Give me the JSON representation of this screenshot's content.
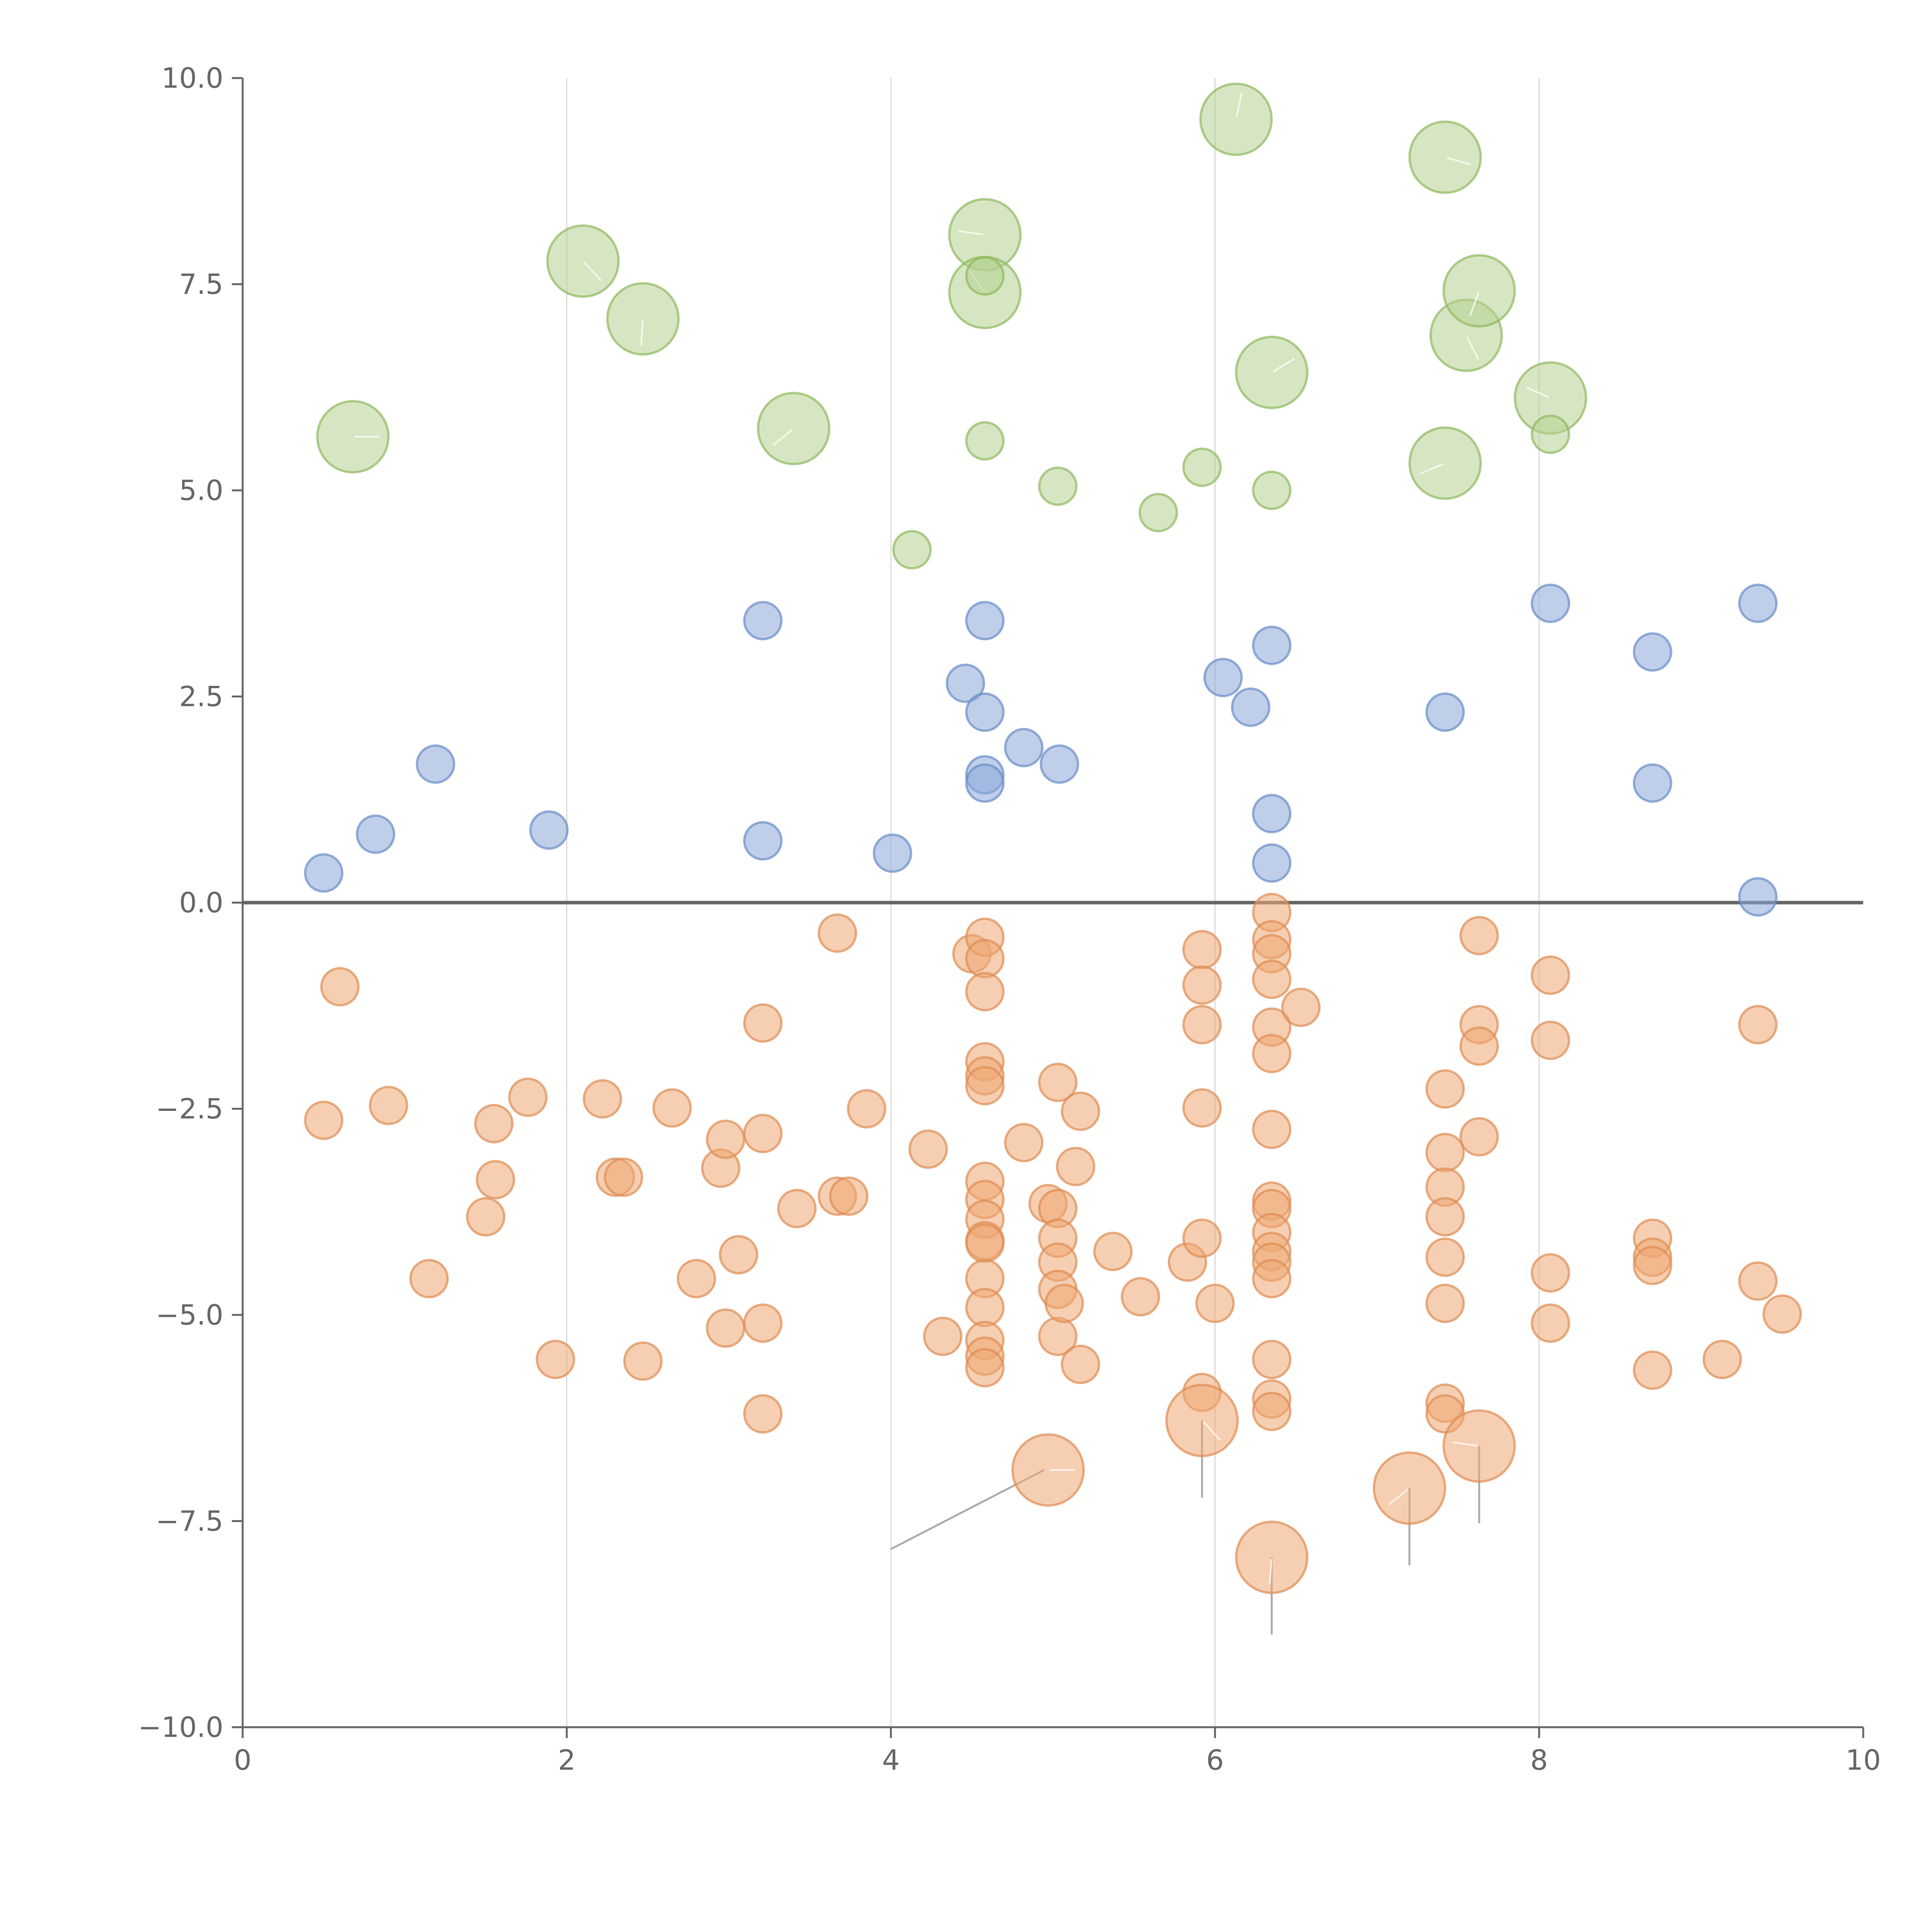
{
  "chart_data": {
    "type": "scatter",
    "title": "",
    "xlabel": "",
    "ylabel": "",
    "xlim": [
      0,
      10
    ],
    "ylim": [
      -10,
      10
    ],
    "x_ticks": [
      0,
      2,
      4,
      6,
      8,
      10
    ],
    "x_tick_labels": [
      "0",
      "2",
      "4",
      "6",
      "8",
      "10"
    ],
    "y_ticks": [
      10,
      7.5,
      5,
      2.5,
      0,
      -2.5,
      -5,
      -7.5,
      -10
    ],
    "y_tick_labels": [
      "10.0",
      "7.5",
      "5.0",
      "2.5",
      "0.0",
      "−2.5",
      "−5.0",
      "−7.5",
      "−10.0"
    ],
    "vertical_grid_at": [
      2,
      4,
      6,
      8
    ],
    "zero_line": 0,
    "colors": {
      "green_fill": "#b5d18f",
      "green_stroke": "#8fb85e",
      "blue_fill": "#8aa8d8",
      "blue_stroke": "#6a8cc6",
      "orange_fill": "#eea872",
      "orange_stroke": "#de8c52"
    },
    "series": [
      {
        "name": "large-green",
        "color": "green",
        "size": "large",
        "points": [
          [
            0.68,
            5.65
          ],
          [
            2.1,
            7.78
          ],
          [
            2.47,
            7.08
          ],
          [
            3.4,
            5.75
          ],
          [
            4.58,
            8.1
          ],
          [
            4.58,
            7.4
          ],
          [
            6.13,
            9.5
          ],
          [
            6.35,
            6.43
          ],
          [
            7.42,
            9.04
          ],
          [
            7.55,
            6.88
          ],
          [
            7.63,
            7.42
          ],
          [
            7.42,
            5.33
          ],
          [
            8.07,
            6.12
          ]
        ]
      },
      {
        "name": "small-green",
        "color": "green",
        "size": "small",
        "points": [
          [
            4.58,
            7.6
          ],
          [
            4.58,
            5.6
          ],
          [
            4.13,
            4.28
          ],
          [
            5.03,
            5.05
          ],
          [
            5.65,
            4.73
          ],
          [
            5.92,
            5.28
          ],
          [
            6.35,
            5.0
          ],
          [
            8.07,
            5.68
          ]
        ]
      },
      {
        "name": "blue",
        "color": "blue",
        "size": "small",
        "points": [
          [
            0.5,
            0.36
          ],
          [
            0.82,
            0.83
          ],
          [
            1.19,
            1.68
          ],
          [
            1.89,
            0.88
          ],
          [
            3.21,
            3.42
          ],
          [
            3.21,
            0.75
          ],
          [
            4.01,
            0.6
          ],
          [
            4.46,
            2.66
          ],
          [
            4.58,
            3.42
          ],
          [
            4.58,
            2.31
          ],
          [
            4.58,
            1.55
          ],
          [
            4.58,
            1.45
          ],
          [
            4.82,
            1.88
          ],
          [
            5.04,
            1.68
          ],
          [
            6.05,
            2.73
          ],
          [
            6.22,
            2.37
          ],
          [
            6.35,
            3.12
          ],
          [
            6.35,
            1.08
          ],
          [
            6.35,
            0.48
          ],
          [
            7.42,
            2.31
          ],
          [
            8.07,
            3.63
          ],
          [
            8.7,
            3.04
          ],
          [
            8.7,
            1.45
          ],
          [
            9.35,
            3.63
          ],
          [
            9.35,
            0.07
          ]
        ]
      },
      {
        "name": "small-orange",
        "color": "orange",
        "size": "small",
        "points": [
          [
            0.5,
            -2.64
          ],
          [
            0.6,
            -1.02
          ],
          [
            0.9,
            -2.46
          ],
          [
            1.15,
            -4.56
          ],
          [
            1.5,
            -3.81
          ],
          [
            1.55,
            -2.68
          ],
          [
            1.56,
            -3.36
          ],
          [
            1.76,
            -2.36
          ],
          [
            1.93,
            -5.54
          ],
          [
            2.22,
            -2.38
          ],
          [
            2.3,
            -3.33
          ],
          [
            2.35,
            -3.33
          ],
          [
            2.47,
            -5.56
          ],
          [
            2.65,
            -2.49
          ],
          [
            2.8,
            -4.56
          ],
          [
            2.95,
            -3.22
          ],
          [
            2.98,
            -2.87
          ],
          [
            2.98,
            -5.16
          ],
          [
            3.06,
            -4.27
          ],
          [
            3.21,
            -1.46
          ],
          [
            3.21,
            -2.8
          ],
          [
            3.21,
            -5.1
          ],
          [
            3.21,
            -6.2
          ],
          [
            3.42,
            -3.71
          ],
          [
            3.67,
            -0.37
          ],
          [
            3.67,
            -3.56
          ],
          [
            3.74,
            -3.56
          ],
          [
            3.85,
            -2.5
          ],
          [
            4.23,
            -2.99
          ],
          [
            4.32,
            -5.26
          ],
          [
            4.5,
            -0.62
          ],
          [
            4.58,
            -0.42
          ],
          [
            4.58,
            -0.68
          ],
          [
            4.58,
            -1.08
          ],
          [
            4.58,
            -1.93
          ],
          [
            4.58,
            -2.1
          ],
          [
            4.58,
            -2.22
          ],
          [
            4.58,
            -3.38
          ],
          [
            4.58,
            -3.6
          ],
          [
            4.58,
            -3.84
          ],
          [
            4.58,
            -4.1
          ],
          [
            4.58,
            -4.13
          ],
          [
            4.58,
            -4.56
          ],
          [
            4.58,
            -4.91
          ],
          [
            4.58,
            -5.31
          ],
          [
            4.58,
            -5.5
          ],
          [
            4.58,
            -5.64
          ],
          [
            4.82,
            -2.91
          ],
          [
            4.97,
            -3.65
          ],
          [
            5.03,
            -2.18
          ],
          [
            5.03,
            -3.71
          ],
          [
            5.03,
            -4.07
          ],
          [
            5.03,
            -4.36
          ],
          [
            5.03,
            -4.69
          ],
          [
            5.03,
            -5.26
          ],
          [
            5.07,
            -4.86
          ],
          [
            5.14,
            -3.2
          ],
          [
            5.17,
            -2.53
          ],
          [
            5.17,
            -5.6
          ],
          [
            5.37,
            -4.23
          ],
          [
            5.54,
            -4.78
          ],
          [
            5.83,
            -4.36
          ],
          [
            5.92,
            -0.57
          ],
          [
            5.92,
            -1.0
          ],
          [
            5.92,
            -1.48
          ],
          [
            5.92,
            -2.49
          ],
          [
            5.92,
            -4.07
          ],
          [
            5.92,
            -5.94
          ],
          [
            6.0,
            -4.86
          ],
          [
            6.35,
            -0.12
          ],
          [
            6.35,
            -0.45
          ],
          [
            6.35,
            -0.62
          ],
          [
            6.35,
            -0.93
          ],
          [
            6.35,
            -1.51
          ],
          [
            6.35,
            -1.83
          ],
          [
            6.35,
            -2.75
          ],
          [
            6.35,
            -3.62
          ],
          [
            6.35,
            -3.71
          ],
          [
            6.35,
            -4.0
          ],
          [
            6.35,
            -4.23
          ],
          [
            6.35,
            -4.36
          ],
          [
            6.35,
            -4.56
          ],
          [
            6.35,
            -5.54
          ],
          [
            6.35,
            -6.02
          ],
          [
            6.35,
            -6.17
          ],
          [
            6.53,
            -1.27
          ],
          [
            7.42,
            -2.26
          ],
          [
            7.42,
            -3.03
          ],
          [
            7.42,
            -3.45
          ],
          [
            7.42,
            -3.81
          ],
          [
            7.42,
            -4.3
          ],
          [
            7.42,
            -4.86
          ],
          [
            7.42,
            -6.07
          ],
          [
            7.42,
            -6.2
          ],
          [
            7.63,
            -0.4
          ],
          [
            7.63,
            -1.48
          ],
          [
            7.63,
            -1.74
          ],
          [
            7.63,
            -2.84
          ],
          [
            8.07,
            -0.88
          ],
          [
            8.07,
            -1.67
          ],
          [
            8.07,
            -4.49
          ],
          [
            8.07,
            -5.1
          ],
          [
            8.7,
            -4.07
          ],
          [
            8.7,
            -4.3
          ],
          [
            8.7,
            -4.4
          ],
          [
            8.7,
            -5.67
          ],
          [
            9.13,
            -5.54
          ],
          [
            9.35,
            -1.48
          ],
          [
            9.35,
            -4.59
          ],
          [
            9.5,
            -4.99
          ]
        ]
      },
      {
        "name": "large-orange",
        "color": "orange",
        "size": "large",
        "points": [
          [
            4.97,
            -6.88
          ],
          [
            5.92,
            -6.28
          ],
          [
            6.35,
            -7.94
          ],
          [
            7.2,
            -7.1
          ],
          [
            7.63,
            -6.59
          ]
        ]
      }
    ]
  }
}
